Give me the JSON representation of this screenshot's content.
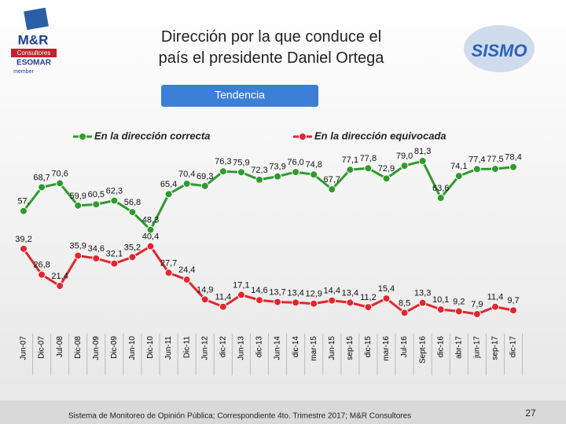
{
  "header": {
    "logo_left": {
      "brand": "M&R",
      "line1": "Consultores",
      "line2": "ESOMAR",
      "line3": "member"
    },
    "logo_right": "SISMO",
    "button": "Tendencia"
  },
  "chart_data": {
    "type": "line",
    "title": "Dirección por la que conduce el país el presidente Daniel Ortega",
    "categories": [
      "Jun-07",
      "Dic-07",
      "Jul-08",
      "Dic-08",
      "Jun-09",
      "Dic-09",
      "Jun-10",
      "Dic-10",
      "Jun-11",
      "Dic-11",
      "Jun-12",
      "dic-12",
      "Jun-13",
      "dic-13",
      "Jun-14",
      "dic-14",
      "mar-15",
      "Jun-15",
      "sep-15",
      "dic-15",
      "mar-16",
      "Jul-16",
      "Sept-16",
      "dic-16",
      "abr-17",
      "jun-17",
      "sep-17",
      "dic-17"
    ],
    "series": [
      {
        "name": "En la dirección correcta",
        "color": "#2f9a2f",
        "values": [
          57.3,
          68.7,
          70.6,
          59.9,
          60.5,
          62.3,
          56.8,
          48.3,
          65.4,
          70.4,
          69.3,
          76.3,
          75.9,
          72.3,
          73.9,
          76.0,
          74.8,
          67.7,
          77.1,
          77.8,
          72.9,
          79.0,
          81.3,
          63.6,
          74.1,
          77.4,
          77.5,
          78.4
        ],
        "value_labels": [
          "57,",
          "68,7",
          "70,6",
          "59,9",
          "60,5",
          "62,3",
          "56,8",
          "48,3",
          "65,4",
          "70,4",
          "69,3",
          "76,3",
          "75,9",
          "72,3",
          "73,9",
          "76,0",
          "74,8",
          "67,7",
          "77,1",
          "77,8",
          "72,9",
          "79,0",
          "81,3",
          "63,6",
          "74,1",
          "77,4",
          "77,5",
          "78,4"
        ]
      },
      {
        "name": "En la dirección equivocada",
        "color": "#e3262d",
        "values": [
          39.2,
          26.8,
          21.4,
          35.9,
          34.6,
          32.1,
          35.2,
          40.4,
          27.7,
          24.4,
          14.9,
          11.4,
          17.1,
          14.6,
          13.7,
          13.4,
          12.9,
          14.4,
          13.4,
          11.2,
          15.4,
          8.5,
          13.3,
          10.1,
          9.2,
          7.9,
          11.4,
          9.7
        ],
        "value_labels": [
          "39,2",
          "26,8",
          "21,4",
          "35,9",
          "34,6",
          "32,1",
          "35,2",
          "40,4",
          "27,7",
          "24,4",
          "14,9",
          "11,4",
          "17,1",
          "14,6",
          "13,7",
          "13,4",
          "12,9",
          "14,4",
          "13,4",
          "11,2",
          "15,4",
          "8,5",
          "13,3",
          "10,1",
          "9,2",
          "7,9",
          "11,4",
          "9,7"
        ]
      }
    ]
  },
  "footer": {
    "source": "Sistema de Monitoreo de Opinión Pública; Correspondiente 4to. Trimestre 2017; M&R Consultores",
    "page": "27"
  }
}
